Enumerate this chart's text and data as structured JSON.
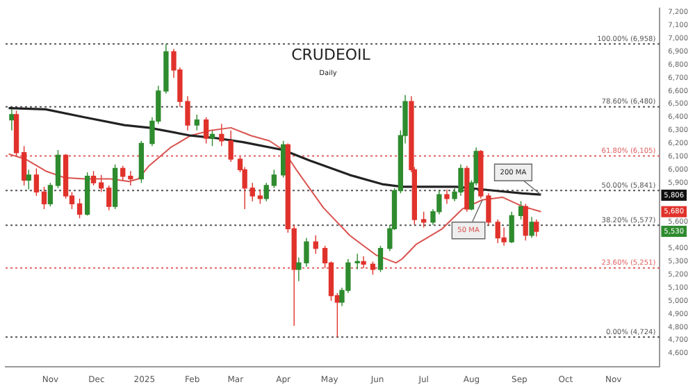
{
  "chart_data": {
    "type": "candlestick",
    "title": "CRUDEOIL",
    "subtitle": "Daily",
    "x": [
      "2024-10-07",
      "2024-10-10",
      "2024-10-15",
      "2024-10-18",
      "2024-10-23",
      "2024-10-28",
      "2024-11-01",
      "2024-11-06",
      "2024-11-11",
      "2024-11-15",
      "2024-11-20",
      "2024-11-25",
      "2024-11-29",
      "2024-12-04",
      "2024-12-09",
      "2024-12-13",
      "2024-12-18",
      "2024-12-23",
      "2024-12-30",
      "2025-01-06",
      "2025-01-10",
      "2025-01-15",
      "2025-01-20",
      "2025-01-24",
      "2025-01-29",
      "2025-02-04",
      "2025-02-10",
      "2025-02-14",
      "2025-02-20",
      "2025-02-26",
      "2025-03-04",
      "2025-03-07",
      "2025-03-12",
      "2025-03-17",
      "2025-03-21",
      "2025-03-26",
      "2025-04-01",
      "2025-04-04",
      "2025-04-08",
      "2025-04-11",
      "2025-04-16",
      "2025-04-22",
      "2025-04-28",
      "2025-05-02",
      "2025-05-06",
      "2025-05-09",
      "2025-05-13",
      "2025-05-19",
      "2025-05-23",
      "2025-05-29",
      "2025-06-03",
      "2025-06-09",
      "2025-06-12",
      "2025-06-16",
      "2025-06-19",
      "2025-06-23",
      "2025-06-25",
      "2025-07-01",
      "2025-07-07",
      "2025-07-11",
      "2025-07-16",
      "2025-07-21",
      "2025-07-25",
      "2025-07-29",
      "2025-08-01",
      "2025-08-04",
      "2025-08-07",
      "2025-08-12",
      "2025-08-18",
      "2025-08-22",
      "2025-08-27",
      "2025-09-02",
      "2025-09-05",
      "2025-09-09",
      "2025-09-12"
    ],
    "ohlc": [
      [
        6380,
        6480,
        6300,
        6420
      ],
      [
        6420,
        6450,
        6100,
        6130
      ],
      [
        6130,
        6180,
        5880,
        5920
      ],
      [
        5920,
        6000,
        5850,
        5960
      ],
      [
        5960,
        6010,
        5800,
        5830
      ],
      [
        5830,
        5870,
        5700,
        5740
      ],
      [
        5740,
        5900,
        5720,
        5880
      ],
      [
        5880,
        6150,
        5860,
        6110
      ],
      [
        6110,
        6120,
        5780,
        5800
      ],
      [
        5800,
        5830,
        5700,
        5740
      ],
      [
        5740,
        5780,
        5630,
        5660
      ],
      [
        5660,
        5980,
        5650,
        5950
      ],
      [
        5950,
        5990,
        5880,
        5900
      ],
      [
        5900,
        5960,
        5830,
        5860
      ],
      [
        5860,
        5880,
        5690,
        5720
      ],
      [
        5720,
        6040,
        5700,
        6010
      ],
      [
        6010,
        6030,
        5920,
        5950
      ],
      [
        5950,
        5990,
        5880,
        5930
      ],
      [
        5930,
        6220,
        5900,
        6200
      ],
      [
        6200,
        6400,
        6180,
        6370
      ],
      [
        6370,
        6640,
        6350,
        6600
      ],
      [
        6600,
        6958,
        6580,
        6900
      ],
      [
        6900,
        6920,
        6700,
        6760
      ],
      [
        6760,
        6780,
        6480,
        6520
      ],
      [
        6520,
        6560,
        6300,
        6340
      ],
      [
        6340,
        6420,
        6300,
        6380
      ],
      [
        6380,
        6400,
        6200,
        6240
      ],
      [
        6240,
        6300,
        6180,
        6270
      ],
      [
        6270,
        6350,
        6180,
        6220
      ],
      [
        6220,
        6300,
        6060,
        6080
      ],
      [
        6080,
        6100,
        5980,
        6000
      ],
      [
        6000,
        6020,
        5700,
        5860
      ],
      [
        5860,
        5900,
        5760,
        5800
      ],
      [
        5800,
        5850,
        5740,
        5780
      ],
      [
        5780,
        5900,
        5760,
        5880
      ],
      [
        5880,
        6000,
        5860,
        5960
      ],
      [
        5960,
        6220,
        5940,
        6190
      ],
      [
        6190,
        6200,
        5520,
        5550
      ],
      [
        5550,
        5580,
        4810,
        5240
      ],
      [
        5240,
        5330,
        5150,
        5290
      ],
      [
        5290,
        5480,
        5260,
        5450
      ],
      [
        5450,
        5500,
        5360,
        5400
      ],
      [
        5400,
        5420,
        5250,
        5290
      ],
      [
        5290,
        5300,
        5000,
        5040
      ],
      [
        5040,
        5060,
        4724,
        4990
      ],
      [
        4990,
        5100,
        4960,
        5080
      ],
      [
        5080,
        5320,
        5060,
        5290
      ],
      [
        5290,
        5360,
        5240,
        5300
      ],
      [
        5300,
        5340,
        5250,
        5280
      ],
      [
        5280,
        5300,
        5200,
        5240
      ],
      [
        5240,
        5420,
        5220,
        5400
      ],
      [
        5400,
        5580,
        5380,
        5550
      ],
      [
        5550,
        5860,
        5540,
        5840
      ],
      [
        5840,
        6300,
        5820,
        6260
      ],
      [
        6260,
        6570,
        6200,
        6520
      ],
      [
        6520,
        6560,
        5980,
        6000
      ],
      [
        6000,
        6020,
        5580,
        5620
      ],
      [
        5620,
        5680,
        5560,
        5600
      ],
      [
        5600,
        5700,
        5580,
        5680
      ],
      [
        5680,
        5840,
        5660,
        5810
      ],
      [
        5810,
        5850,
        5740,
        5780
      ],
      [
        5780,
        5860,
        5760,
        5830
      ],
      [
        5830,
        6040,
        5800,
        6010
      ],
      [
        6010,
        6030,
        5680,
        5700
      ],
      [
        5700,
        5920,
        5690,
        5900
      ],
      [
        5900,
        6170,
        5880,
        6140
      ],
      [
        6140,
        6150,
        5780,
        5800
      ],
      [
        5800,
        5820,
        5580,
        5600
      ],
      [
        5600,
        5620,
        5440,
        5480
      ],
      [
        5480,
        5560,
        5420,
        5450
      ],
      [
        5450,
        5680,
        5440,
        5650
      ],
      [
        5650,
        5760,
        5620,
        5720
      ],
      [
        5720,
        5740,
        5460,
        5500
      ],
      [
        5500,
        5640,
        5480,
        5600
      ],
      [
        5600,
        5620,
        5490,
        5530
      ]
    ],
    "series": [
      {
        "name": "200 MA",
        "type": "line",
        "color": "#222222",
        "x": [
          "2024-10-05",
          "2024-10-29",
          "2024-11-23",
          "2024-12-19",
          "2025-01-04",
          "2025-01-31",
          "2025-02-17",
          "2025-03-06",
          "2025-04-01",
          "2025-04-18",
          "2025-05-14",
          "2025-06-04",
          "2025-06-17",
          "2025-06-30",
          "2025-07-22",
          "2025-08-16",
          "2025-09-03",
          "2025-09-15"
        ],
        "values": [
          6470,
          6460,
          6400,
          6340,
          6320,
          6260,
          6240,
          6210,
          6150,
          6070,
          5960,
          5890,
          5870,
          5870,
          5870,
          5840,
          5820,
          5810
        ]
      },
      {
        "name": "50 MA",
        "type": "line",
        "color": "#d9534f",
        "x": [
          "2024-10-05",
          "2024-10-16",
          "2024-10-29",
          "2024-11-10",
          "2024-11-23",
          "2024-12-10",
          "2024-12-22",
          "2024-12-28",
          "2025-01-04",
          "2025-01-18",
          "2025-01-31",
          "2025-02-13",
          "2025-02-26",
          "2025-03-11",
          "2025-03-23",
          "2025-04-01",
          "2025-04-10",
          "2025-04-27",
          "2025-05-14",
          "2025-05-31",
          "2025-06-13",
          "2025-06-17",
          "2025-06-26",
          "2025-07-13",
          "2025-07-26",
          "2025-08-08",
          "2025-08-21",
          "2025-09-03",
          "2025-09-15"
        ],
        "values": [
          6120,
          6080,
          5990,
          5940,
          5930,
          5930,
          5910,
          5930,
          6030,
          6170,
          6260,
          6300,
          6320,
          6260,
          6220,
          6150,
          5990,
          5710,
          5500,
          5350,
          5290,
          5320,
          5430,
          5550,
          5700,
          5770,
          5790,
          5720,
          5680
        ]
      }
    ],
    "xlim": [
      "2024-10-03",
      "2025-12-01"
    ],
    "xticks": [
      {
        "value": "2024-11-01",
        "label": "Nov"
      },
      {
        "value": "2024-12-01",
        "label": "Dec"
      },
      {
        "value": "2025-01-01",
        "label": "2025"
      },
      {
        "value": "2025-02-01",
        "label": "Feb"
      },
      {
        "value": "2025-03-01",
        "label": "Mar"
      },
      {
        "value": "2025-04-01",
        "label": "Apr"
      },
      {
        "value": "2025-05-01",
        "label": "May"
      },
      {
        "value": "2025-06-01",
        "label": "Jun"
      },
      {
        "value": "2025-07-01",
        "label": "Jul"
      },
      {
        "value": "2025-08-01",
        "label": "Aug"
      },
      {
        "value": "2025-09-01",
        "label": "Sep"
      },
      {
        "value": "2025-10-01",
        "label": "Oct"
      },
      {
        "value": "2025-11-01",
        "label": "Nov"
      }
    ],
    "ylim": [
      4500,
      7230
    ],
    "yticks": [
      {
        "value": 4600,
        "label": "4,600"
      },
      {
        "value": 4700,
        "label": "4,700"
      },
      {
        "value": 4800,
        "label": "4,800"
      },
      {
        "value": 4900,
        "label": "4,900"
      },
      {
        "value": 5000,
        "label": "5,000"
      },
      {
        "value": 5100,
        "label": "5,100"
      },
      {
        "value": 5200,
        "label": "5,200"
      },
      {
        "value": 5300,
        "label": "5,300"
      },
      {
        "value": 5400,
        "label": "5,400"
      },
      {
        "value": 5600,
        "label": "5,600"
      },
      {
        "value": 5900,
        "label": "5,900"
      },
      {
        "value": 6000,
        "label": "6,000"
      },
      {
        "value": 6100,
        "label": "6,100"
      },
      {
        "value": 6200,
        "label": "6,200"
      },
      {
        "value": 6300,
        "label": "6,300"
      },
      {
        "value": 6400,
        "label": "6,400"
      },
      {
        "value": 6500,
        "label": "6,500"
      },
      {
        "value": 6600,
        "label": "6,600"
      },
      {
        "value": 6700,
        "label": "6,700"
      },
      {
        "value": 6800,
        "label": "6,800"
      },
      {
        "value": 6900,
        "label": "6,900"
      },
      {
        "value": 7000,
        "label": "7,000"
      },
      {
        "value": 7100,
        "label": "7,100"
      },
      {
        "value": 7200,
        "label": "7,200"
      }
    ],
    "ref_lines": [
      {
        "axis": "y",
        "value": 6958,
        "label": "100.00% (6,958)",
        "color": "#555555",
        "line_style": "dotted"
      },
      {
        "axis": "y",
        "value": 6480,
        "label": "78.60% (6,480)",
        "color": "#555555",
        "line_style": "dotted"
      },
      {
        "axis": "y",
        "value": 6105,
        "label": "61.80% (6,105)",
        "color": "#e06060",
        "line_style": "dotted"
      },
      {
        "axis": "y",
        "value": 5841,
        "label": "50.00% (5,841)",
        "color": "#555555",
        "line_style": "dotted"
      },
      {
        "axis": "y",
        "value": 5577,
        "label": "38.20% (5,577)",
        "color": "#555555",
        "line_style": "dotted"
      },
      {
        "axis": "y",
        "value": 5251,
        "label": "23.60% (5,251)",
        "color": "#e06060",
        "line_style": "dotted"
      },
      {
        "axis": "y",
        "value": 4724,
        "label": "0.00% (4,724)",
        "color": "#555555",
        "line_style": "dotted"
      }
    ],
    "annotations": [
      {
        "text": "5,806",
        "y": 5806
      },
      {
        "text": "5,680",
        "y": 5680
      },
      {
        "text": "5,530",
        "y": 5530
      }
    ]
  }
}
